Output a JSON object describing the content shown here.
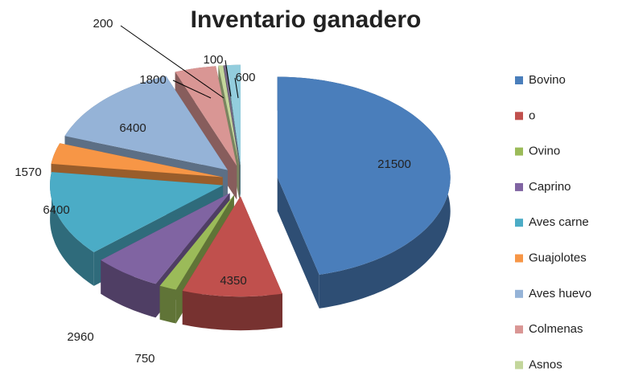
{
  "chart_data": {
    "type": "pie",
    "title": "Inventario ganadero",
    "categories": [
      "Bovino",
      "o",
      "Ovino",
      "Caprino",
      "Aves carne",
      "Guajolotes",
      "Aves huevo",
      "Colmenas",
      "Asnos",
      null,
      null
    ],
    "values": [
      21500,
      4350,
      750,
      2960,
      6400,
      1570,
      6400,
      1800,
      200,
      100,
      600
    ],
    "colors": [
      "#4a7ebb",
      "#c0504d",
      "#9bbb59",
      "#8064a2",
      "#4bacc6",
      "#f79646",
      "#95b3d7",
      "#d99694",
      "#c3d69b",
      "#7a6a8a",
      "#93cddd"
    ],
    "legend": "right"
  }
}
